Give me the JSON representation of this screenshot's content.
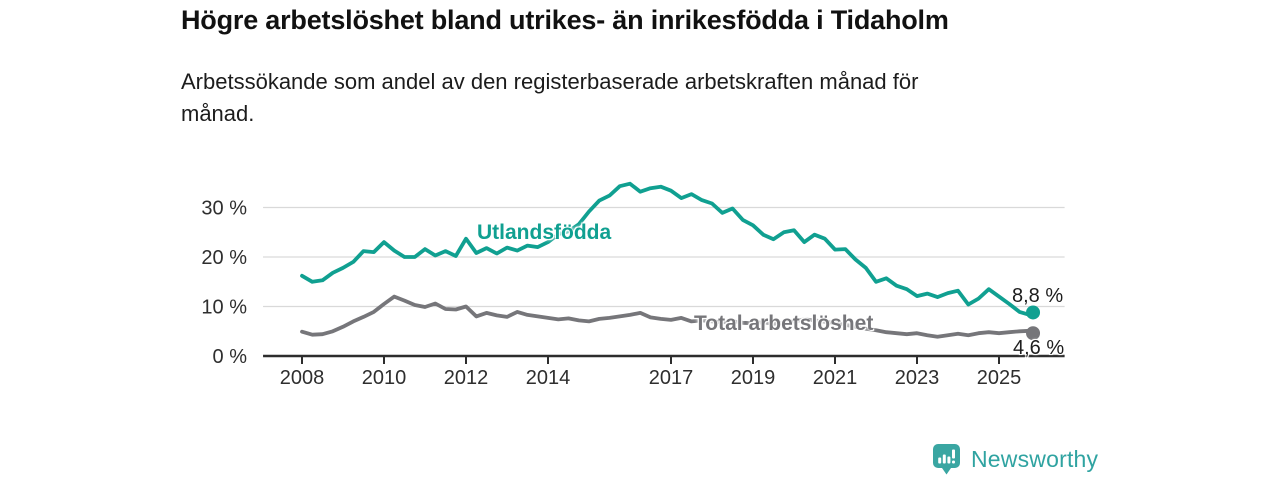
{
  "header": {
    "title": "Högre arbetslöshet bland utrikes- än inrikesfödda i Tidaholm",
    "subtitle_line1": "Arbetssökande som andel av den registerbaserade arbetskraften månad för",
    "subtitle_line2": "månad."
  },
  "chart_data": {
    "type": "line",
    "title": "Högre arbetslöshet bland utrikes- än inrikesfödda i Tidaholm",
    "x_unit": "year (monthly series)",
    "grid": "horizontal",
    "legend_position": "inline-labels",
    "ylim": [
      0,
      35.5
    ],
    "xlim": [
      2007.05,
      2026.6
    ],
    "y_ticks": [
      {
        "value": 0,
        "label": "0 %"
      },
      {
        "value": 10,
        "label": "10 %"
      },
      {
        "value": 20,
        "label": "20 %"
      },
      {
        "value": 30,
        "label": "30 %"
      }
    ],
    "x_ticks": [
      {
        "value": 2008,
        "label": "2008"
      },
      {
        "value": 2010,
        "label": "2010"
      },
      {
        "value": 2012,
        "label": "2012"
      },
      {
        "value": 2014,
        "label": "2014"
      },
      {
        "value": 2017,
        "label": "2017"
      },
      {
        "value": 2019,
        "label": "2019"
      },
      {
        "value": 2021,
        "label": "2021"
      },
      {
        "value": 2023,
        "label": "2023"
      },
      {
        "value": 2025,
        "label": "2025"
      }
    ],
    "x": [
      2008,
      2008.25,
      2008.5,
      2008.75,
      2009,
      2009.25,
      2009.5,
      2009.75,
      2010,
      2010.25,
      2010.5,
      2010.75,
      2011,
      2011.25,
      2011.5,
      2011.75,
      2012,
      2012.25,
      2012.5,
      2012.75,
      2013,
      2013.25,
      2013.5,
      2013.75,
      2014,
      2014.25,
      2014.5,
      2014.75,
      2015,
      2015.25,
      2015.5,
      2015.75,
      2016,
      2016.25,
      2016.5,
      2016.75,
      2017,
      2017.25,
      2017.5,
      2017.75,
      2018,
      2018.25,
      2018.5,
      2018.75,
      2019,
      2019.25,
      2019.5,
      2019.75,
      2020,
      2020.25,
      2020.5,
      2020.75,
      2021,
      2021.25,
      2021.5,
      2021.75,
      2022,
      2022.25,
      2022.5,
      2022.75,
      2023,
      2023.25,
      2023.5,
      2023.75,
      2024,
      2024.25,
      2024.5,
      2024.75,
      2025,
      2025.25,
      2025.5,
      2025.75,
      2025.83
    ],
    "series": [
      {
        "name": "Utlandsfödda",
        "color": "#10a091",
        "end_label": "8,8 %",
        "end_value": 8.8,
        "values": [
          16.2,
          15.0,
          15.3,
          16.8,
          17.8,
          19.0,
          21.2,
          21.0,
          23.0,
          21.3,
          20.0,
          20.0,
          21.6,
          20.3,
          21.2,
          20.2,
          23.7,
          20.8,
          21.8,
          20.7,
          21.9,
          21.3,
          22.3,
          22.0,
          23.0,
          24.6,
          25.2,
          26.6,
          29.2,
          31.4,
          32.4,
          34.3,
          34.8,
          33.2,
          33.9,
          34.2,
          33.4,
          31.9,
          32.7,
          31.5,
          30.8,
          28.9,
          29.8,
          27.5,
          26.4,
          24.5,
          23.6,
          25.0,
          25.4,
          23.0,
          24.5,
          23.7,
          21.5,
          21.6,
          19.5,
          17.8,
          15.0,
          15.7,
          14.2,
          13.5,
          12.1,
          12.6,
          11.9,
          12.7,
          13.2,
          10.4,
          11.6,
          13.5,
          12.0,
          10.5,
          8.9,
          8.3,
          8.8
        ]
      },
      {
        "name": "Total arbetslöshet",
        "color": "#76767a",
        "end_label": "4,6 %",
        "end_value": 4.6,
        "values": [
          4.9,
          4.3,
          4.4,
          5.0,
          5.9,
          7.0,
          7.9,
          8.9,
          10.5,
          12.0,
          11.2,
          10.3,
          9.9,
          10.6,
          9.5,
          9.4,
          10.0,
          8.0,
          8.7,
          8.2,
          7.9,
          8.9,
          8.3,
          8.0,
          7.7,
          7.4,
          7.6,
          7.2,
          7.0,
          7.5,
          7.7,
          8.0,
          8.3,
          8.7,
          7.8,
          7.5,
          7.3,
          7.7,
          7.0,
          7.2,
          7.0,
          6.8,
          7.0,
          6.7,
          6.6,
          6.8,
          6.5,
          6.7,
          7.0,
          7.4,
          7.2,
          6.9,
          6.7,
          6.3,
          5.9,
          5.5,
          5.2,
          4.8,
          4.6,
          4.4,
          4.6,
          4.2,
          3.9,
          4.2,
          4.5,
          4.2,
          4.6,
          4.8,
          4.6,
          4.8,
          5.0,
          5.1,
          4.6
        ]
      }
    ]
  },
  "colors": {
    "axis": "#2d2d2d",
    "grid": "#d9d9d9",
    "tick_text": "#2e2e2e",
    "annotation_text": "#1d1d1d",
    "logo_teal": "#2fa3a1"
  },
  "logo": {
    "text": "Newsworthy",
    "icon": "bar-chart-speech-bubble-icon"
  }
}
